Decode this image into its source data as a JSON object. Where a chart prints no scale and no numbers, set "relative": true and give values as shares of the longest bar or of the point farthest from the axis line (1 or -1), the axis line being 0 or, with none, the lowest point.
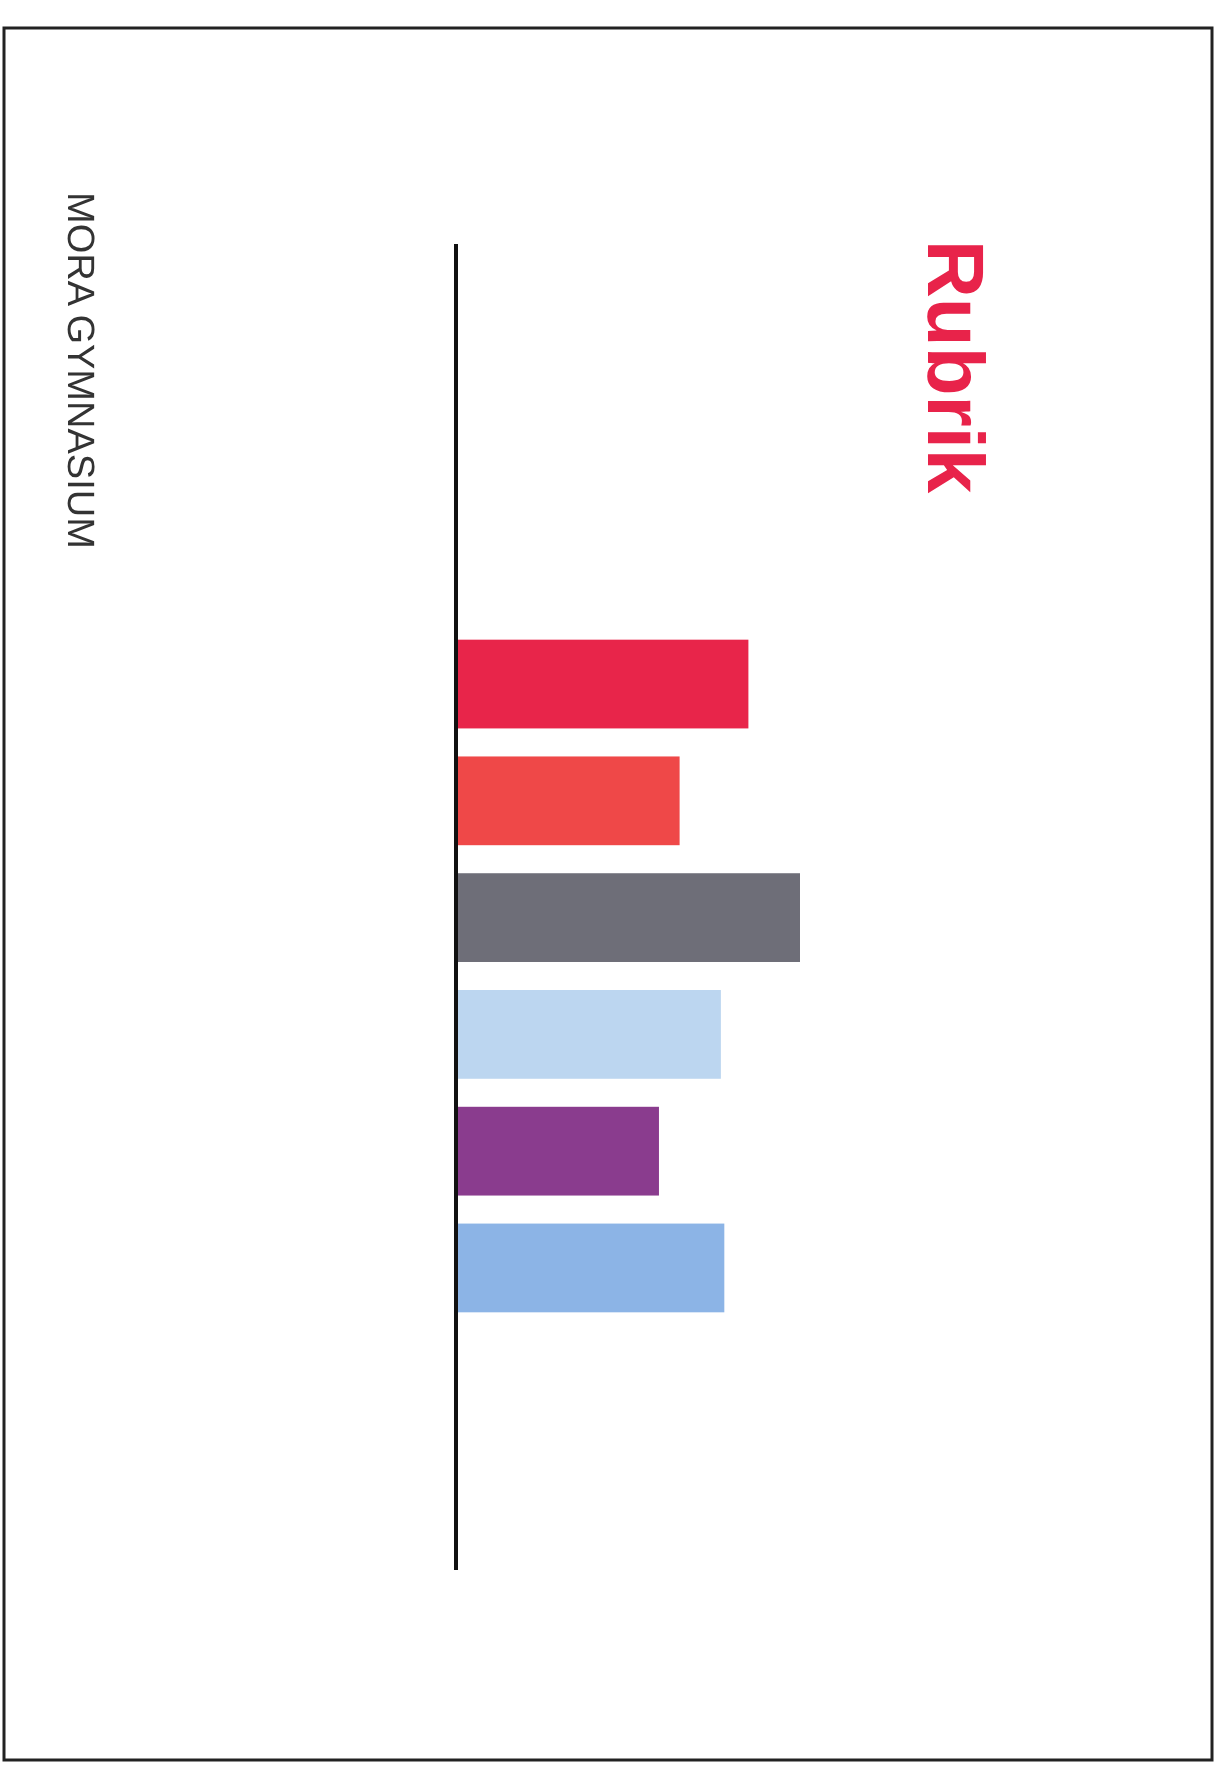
{
  "chart_data": {
    "type": "bar",
    "title": "Rubrik",
    "orientation": "horizontal",
    "relative": true,
    "categories": [
      null,
      null,
      null,
      null,
      null,
      null
    ],
    "values": [
      0.85,
      0.65,
      1,
      0.77,
      0.59,
      0.78
    ],
    "colors": [
      "#e8254a",
      "#ef4848",
      "#6e6e78",
      "#bcd6f0",
      "#8a3c8e",
      "#8cb4e6"
    ],
    "annotations": [
      "MORA GYMNASIUM"
    ]
  }
}
